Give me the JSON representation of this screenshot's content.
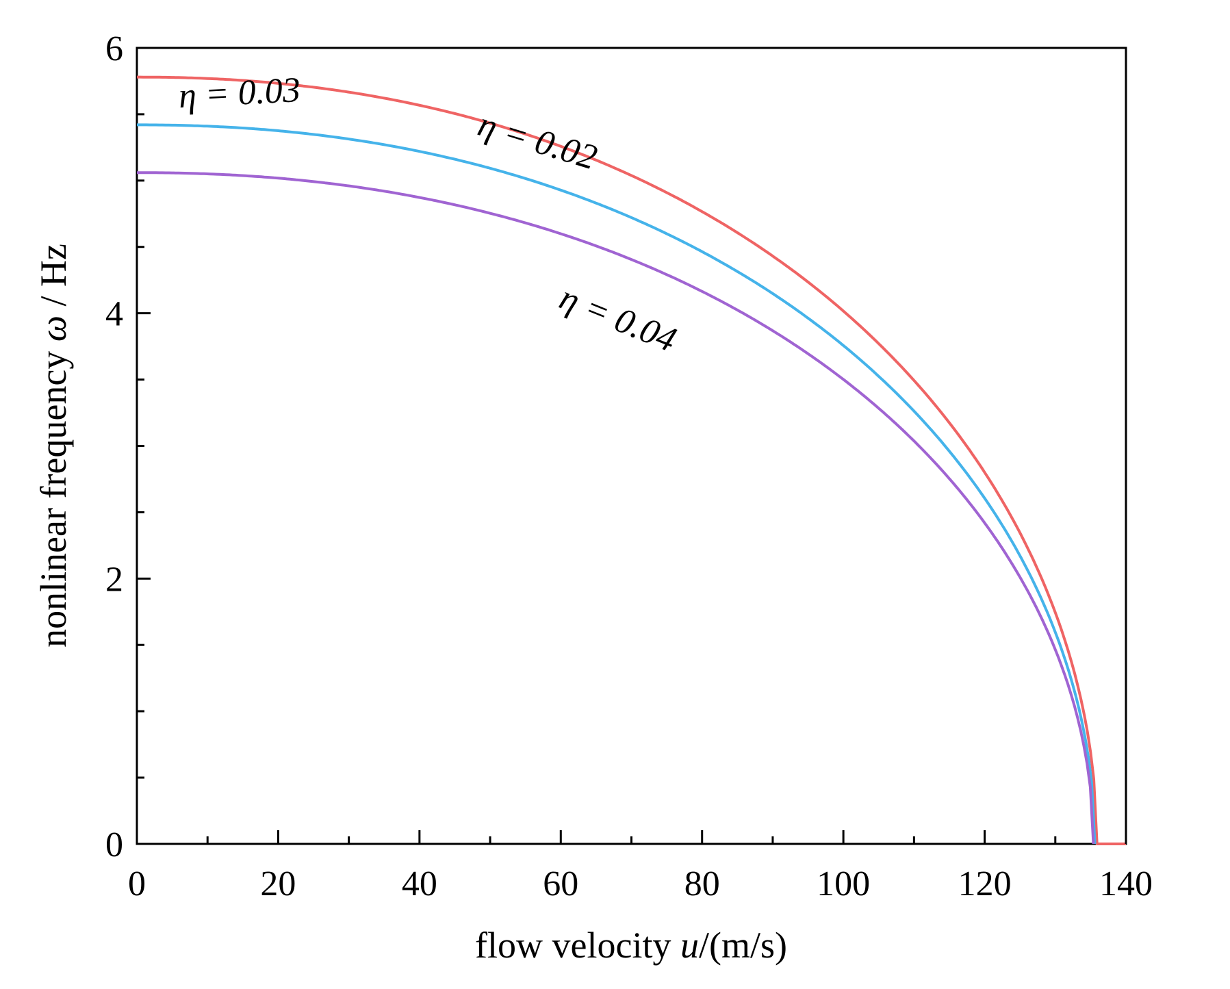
{
  "chart_data": {
    "type": "line",
    "xlabel_parts": [
      "flow velocity ",
      "u",
      "/(m/s)"
    ],
    "ylabel_parts": [
      "nonlinear frequency ",
      "ω",
      " / Hz"
    ],
    "xlim": [
      0,
      140
    ],
    "ylim": [
      0,
      6
    ],
    "x_major_ticks": [
      0,
      20,
      40,
      60,
      80,
      100,
      120,
      140
    ],
    "x_tick_labels": [
      "0",
      "20",
      "40",
      "60",
      "80",
      "100",
      "120",
      "140"
    ],
    "x_minor_ticks": [
      10,
      30,
      50,
      70,
      90,
      110,
      130
    ],
    "y_major_ticks": [
      0,
      2,
      4,
      6
    ],
    "y_tick_labels": [
      "0",
      "2",
      "4",
      "6"
    ],
    "y_minor_ticks": [
      0.5,
      1,
      1.5,
      2.5,
      3,
      3.5,
      4.5,
      5,
      5.5
    ],
    "grid": false,
    "series": [
      {
        "color": "#ef6464",
        "omega0": 5.78,
        "u_critical": 135.9,
        "x": [
          0,
          10,
          20,
          30,
          40,
          50,
          60,
          70,
          80,
          90,
          100,
          110,
          120,
          125,
          130,
          133,
          135,
          135.9,
          136,
          140
        ],
        "y": [
          5.78,
          5.75,
          5.67,
          5.52,
          5.35,
          5.13,
          4.87,
          4.55,
          4.19,
          3.78,
          3.28,
          2.68,
          1.94,
          1.5,
          0.97,
          0.62,
          0.32,
          0.0,
          0.0,
          0.0
        ]
      },
      {
        "color": "#45b3ea",
        "omega0": 5.42,
        "u_critical": 135.6,
        "x": [
          0,
          10,
          20,
          30,
          40,
          50,
          60,
          70,
          80,
          90,
          100,
          110,
          120,
          125,
          130,
          133,
          135,
          135.6
        ],
        "y": [
          5.42,
          5.39,
          5.31,
          5.19,
          5.01,
          4.8,
          4.56,
          4.27,
          3.93,
          3.54,
          3.08,
          2.52,
          1.82,
          1.4,
          0.91,
          0.58,
          0.3,
          0.0
        ]
      },
      {
        "color": "#a064d2",
        "omega0": 5.06,
        "u_critical": 135.4,
        "x": [
          0,
          10,
          20,
          30,
          40,
          50,
          60,
          70,
          80,
          90,
          100,
          110,
          120,
          125,
          130,
          133,
          135,
          135.4
        ],
        "y": [
          5.06,
          5.04,
          4.96,
          4.84,
          4.68,
          4.48,
          4.26,
          3.99,
          3.67,
          3.31,
          2.87,
          2.35,
          1.7,
          1.31,
          0.85,
          0.54,
          0.28,
          0.0
        ]
      }
    ],
    "annotations": [
      {
        "text": "η = 0.02",
        "x": 48,
        "y": 5.35,
        "rotate": 17
      },
      {
        "text": "η = 0.03",
        "x": 6,
        "y": 5.55,
        "rotate": -3
      },
      {
        "text": "η = 0.04",
        "x": 59.5,
        "y": 4.05,
        "rotate": 22
      }
    ]
  }
}
